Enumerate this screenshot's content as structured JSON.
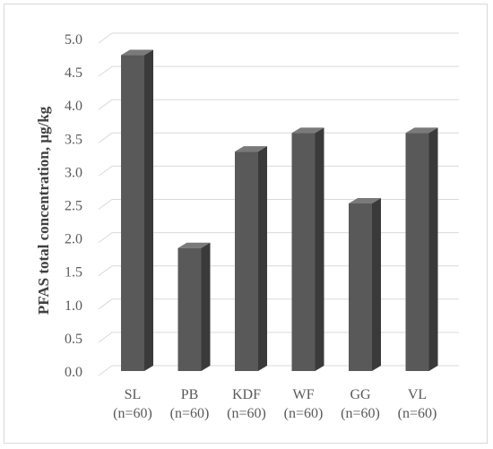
{
  "chart_data": {
    "type": "bar",
    "title": "",
    "xlabel": "",
    "ylabel": "PFAS total concentration, µg/kg",
    "categories": [
      "SL",
      "PB",
      "KDF",
      "WF",
      "GG",
      "VL"
    ],
    "category_sublabels": [
      "(n=60)",
      "(n=60)",
      "(n=60)",
      "(n=60)",
      "(n=60)",
      "(n=60)"
    ],
    "values": [
      4.75,
      1.85,
      3.3,
      3.58,
      2.52,
      3.58
    ],
    "ylim": [
      0,
      5.0
    ],
    "yticks": [
      "0.0",
      "0.5",
      "1.0",
      "1.5",
      "2.0",
      "2.5",
      "3.0",
      "3.5",
      "4.0",
      "4.5",
      "5.0"
    ],
    "grid": true,
    "legend": "none",
    "bar_style": "3d",
    "colors": {
      "bar_front": "#595959",
      "bar_side": "#3a3a3a",
      "bar_top": "#7a7a7a",
      "grid": "#d9d9d9"
    }
  }
}
